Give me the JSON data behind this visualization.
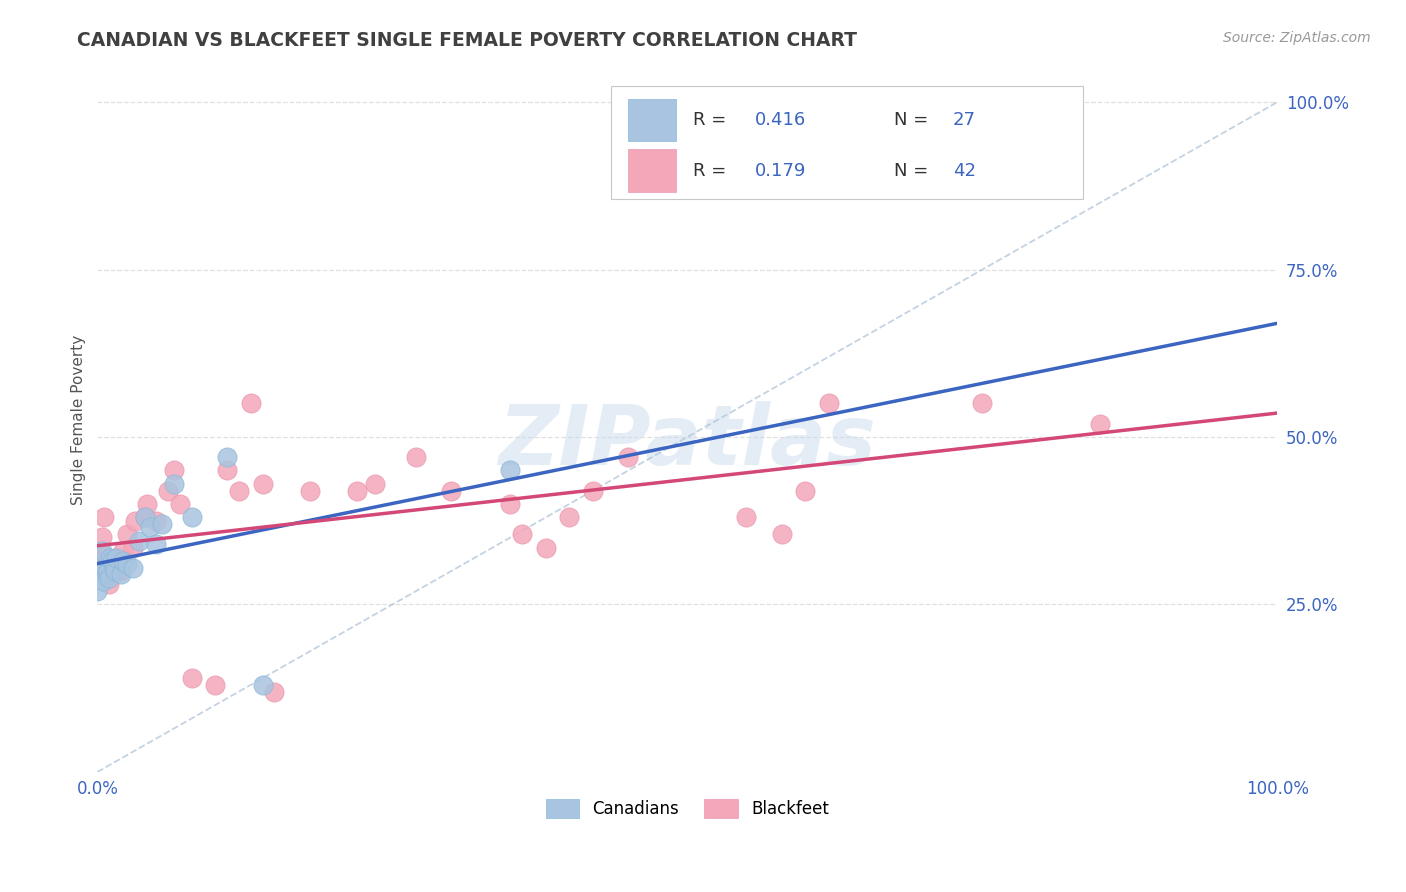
{
  "title": "CANADIAN VS BLACKFEET SINGLE FEMALE POVERTY CORRELATION CHART",
  "source": "Source: ZipAtlas.com",
  "ylabel": "Single Female Poverty",
  "xlim": [
    0.0,
    1.0
  ],
  "ylim": [
    0.0,
    1.05
  ],
  "xticks": [
    0.0,
    1.0
  ],
  "xtick_labels": [
    "0.0%",
    "100.0%"
  ],
  "yticks_right": [
    0.25,
    0.5,
    0.75,
    1.0
  ],
  "ytick_labels_right": [
    "25.0%",
    "50.0%",
    "75.0%",
    "100.0%"
  ],
  "legend_r_can": "R = 0.416",
  "legend_n_can": "N = 27",
  "legend_r_blk": "R = 0.179",
  "legend_n_blk": "N = 42",
  "canadian_color": "#a8c4e0",
  "blackfeet_color": "#f4a7b9",
  "line_canadian_color": "#3b65c0",
  "line_blackfeet_color": "#d44878",
  "diagonal_color": "#b0c4d8",
  "r_value_color": "#3b65c0",
  "grid_color": "#e0e0e0",
  "background_color": "#ffffff",
  "title_color": "#404040",
  "watermark": "ZIPatlas",
  "canadians_x": [
    0.0,
    0.002,
    0.003,
    0.004,
    0.005,
    0.008,
    0.009,
    0.01,
    0.011,
    0.012,
    0.014,
    0.015,
    0.016,
    0.02,
    0.022,
    0.025,
    0.03,
    0.035,
    0.04,
    0.045,
    0.05,
    0.055,
    0.065,
    0.08,
    0.11,
    0.14,
    0.35
  ],
  "canadians_y": [
    0.27,
    0.295,
    0.31,
    0.33,
    0.285,
    0.295,
    0.3,
    0.29,
    0.32,
    0.315,
    0.305,
    0.3,
    0.32,
    0.295,
    0.315,
    0.31,
    0.305,
    0.345,
    0.38,
    0.365,
    0.34,
    0.37,
    0.43,
    0.38,
    0.47,
    0.13,
    0.45
  ],
  "blackfeet_x": [
    0.0,
    0.002,
    0.004,
    0.006,
    0.01,
    0.012,
    0.015,
    0.02,
    0.022,
    0.025,
    0.03,
    0.032,
    0.04,
    0.042,
    0.05,
    0.06,
    0.065,
    0.07,
    0.08,
    0.1,
    0.11,
    0.12,
    0.13,
    0.14,
    0.15,
    0.18,
    0.22,
    0.235,
    0.27,
    0.3,
    0.35,
    0.36,
    0.38,
    0.4,
    0.42,
    0.45,
    0.55,
    0.58,
    0.6,
    0.62,
    0.75,
    0.85
  ],
  "blackfeet_y": [
    0.32,
    0.33,
    0.35,
    0.38,
    0.28,
    0.3,
    0.32,
    0.3,
    0.33,
    0.355,
    0.335,
    0.375,
    0.38,
    0.4,
    0.375,
    0.42,
    0.45,
    0.4,
    0.14,
    0.13,
    0.45,
    0.42,
    0.55,
    0.43,
    0.12,
    0.42,
    0.42,
    0.43,
    0.47,
    0.42,
    0.4,
    0.355,
    0.335,
    0.38,
    0.42,
    0.47,
    0.38,
    0.355,
    0.42,
    0.55,
    0.55,
    0.52
  ]
}
